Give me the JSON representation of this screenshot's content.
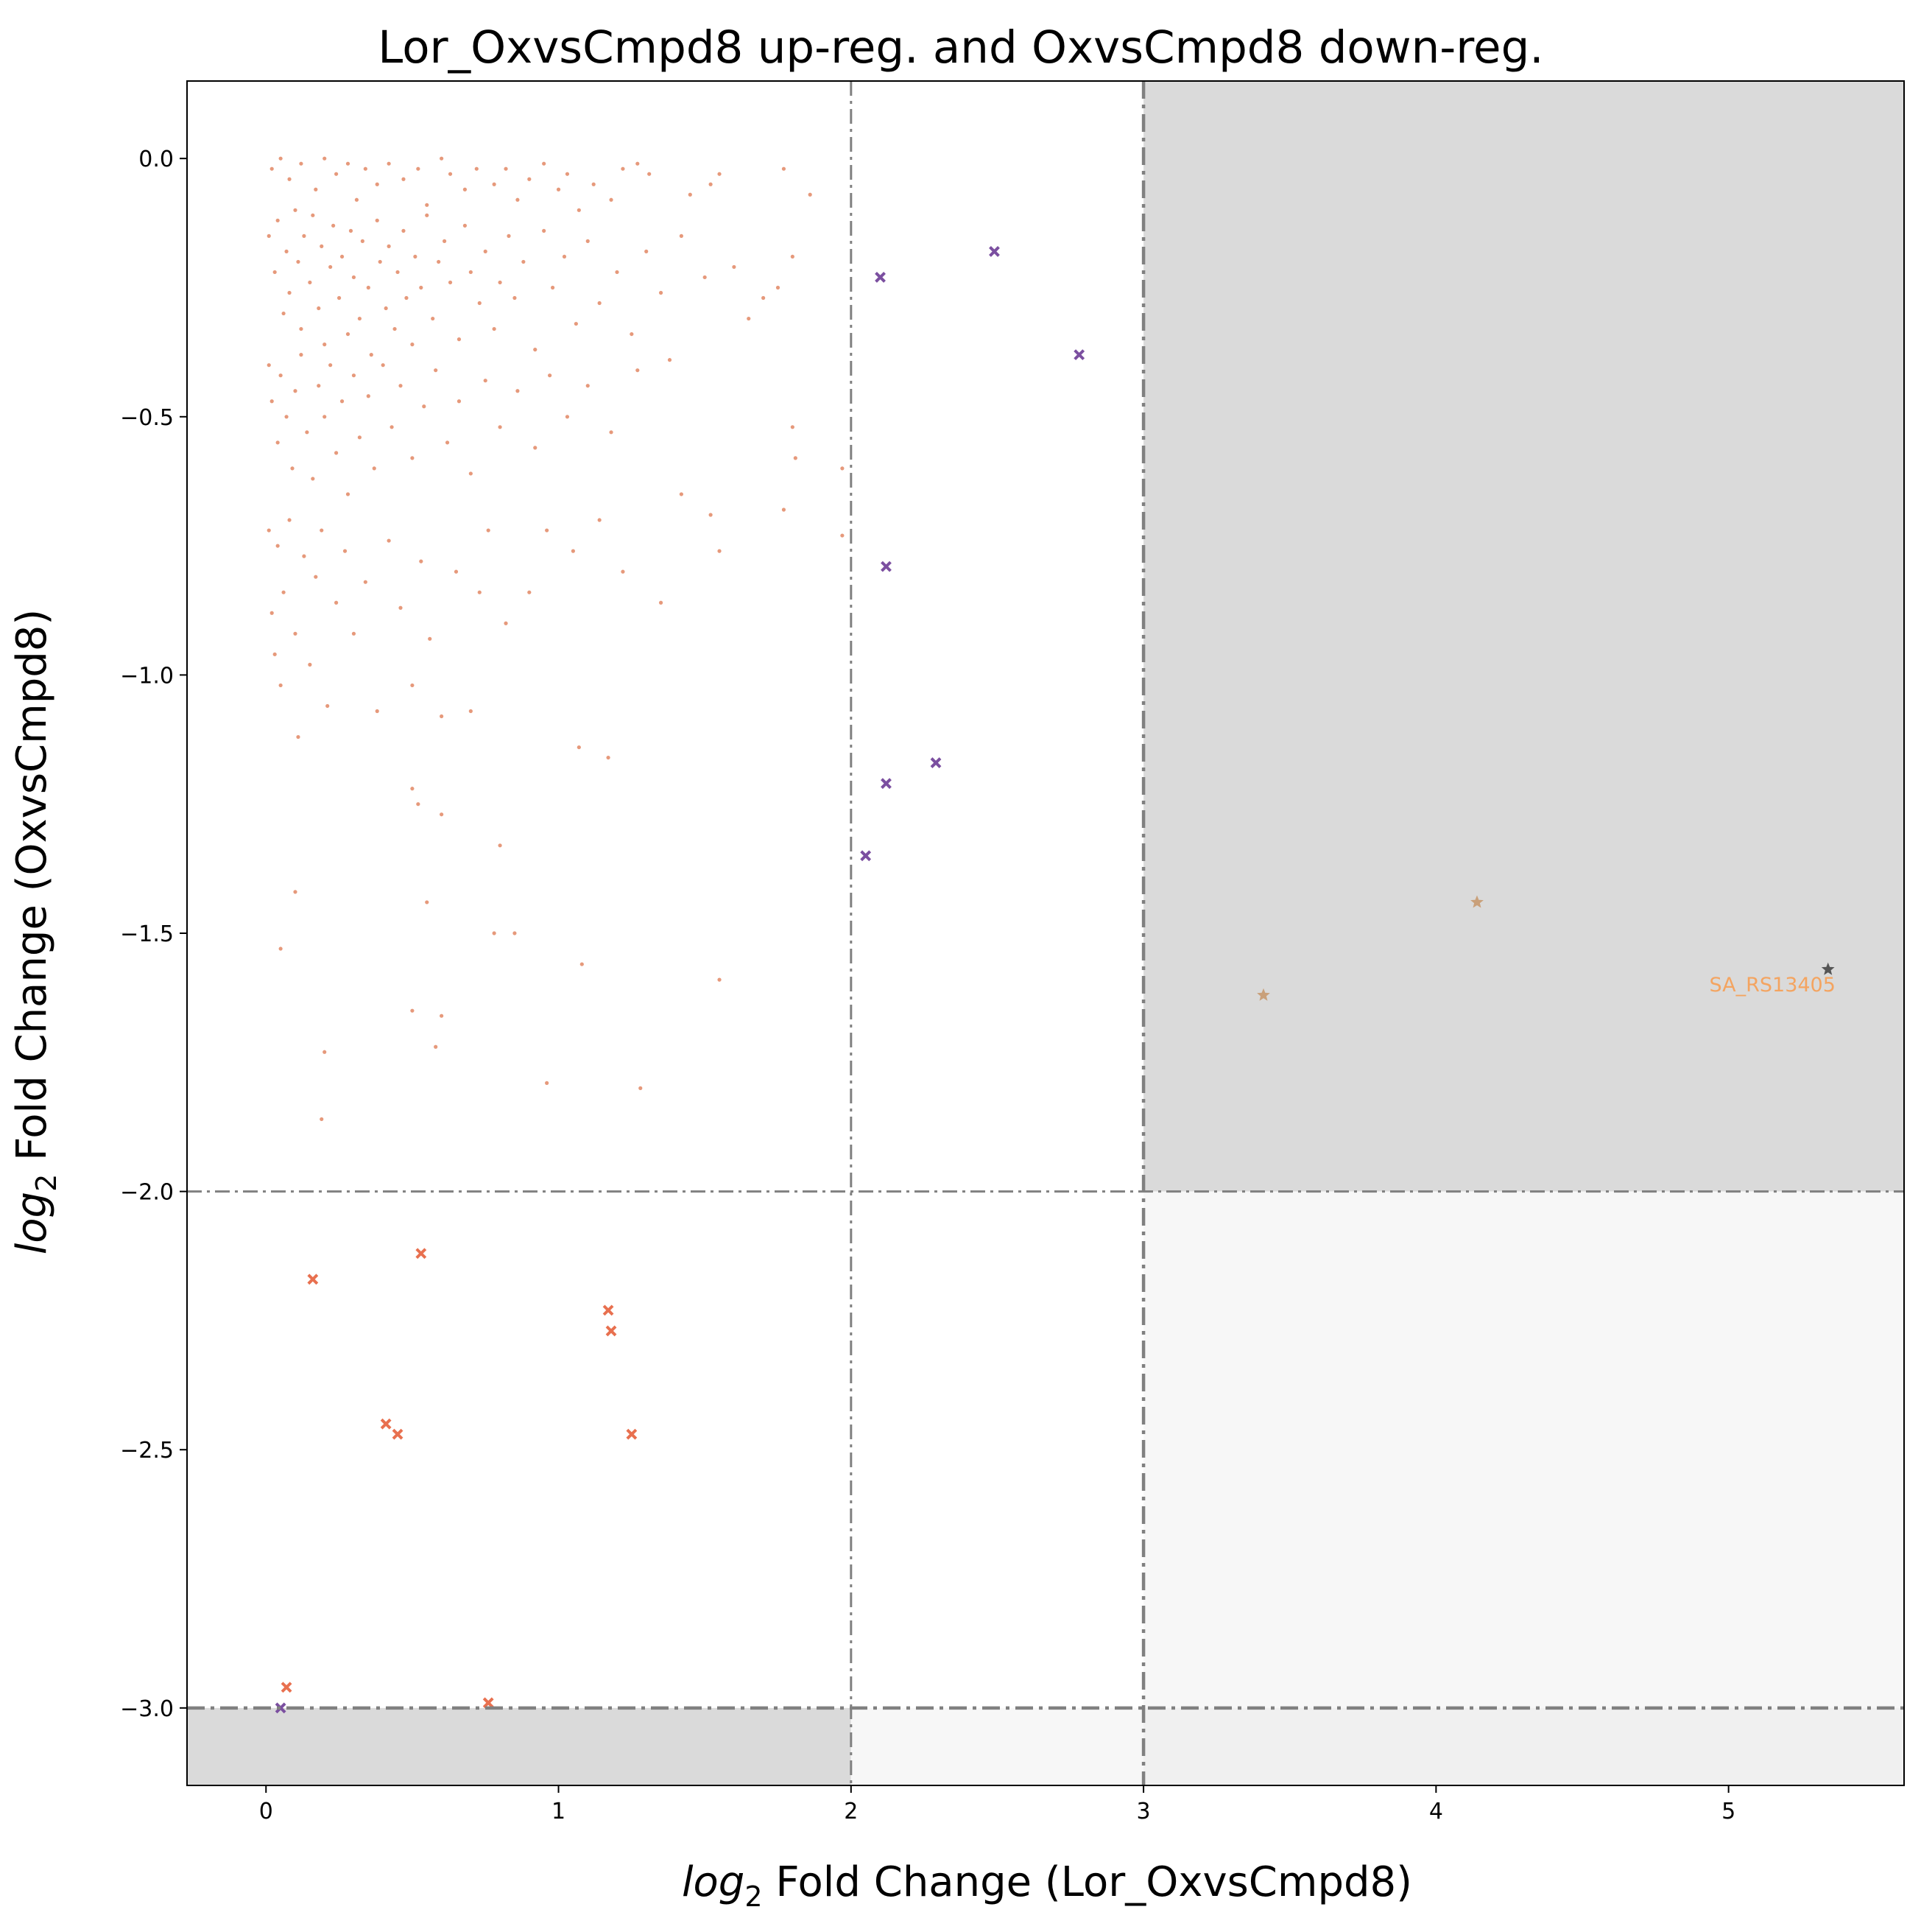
{
  "chart_data": {
    "type": "scatter",
    "title": "Lor_OxvsCmpd8 up-reg. and OxvsCmpd8 down-reg.",
    "xlabel": {
      "prefix": "log",
      "sub": "2",
      "rest": " Fold Change (Lor_OxvsCmpd8)"
    },
    "ylabel": {
      "prefix": "log",
      "sub": "2",
      "rest": " Fold Change (OxvsCmpd8)"
    },
    "xlim": [
      -0.27,
      5.6
    ],
    "ylim": [
      -3.15,
      0.15
    ],
    "xticks": [
      {
        "value": 0,
        "label": "0"
      },
      {
        "value": 1,
        "label": "1"
      },
      {
        "value": 2,
        "label": "2"
      },
      {
        "value": 3,
        "label": "3"
      },
      {
        "value": 4,
        "label": "4"
      },
      {
        "value": 5,
        "label": "5"
      }
    ],
    "yticks": [
      {
        "value": 0,
        "label": "0.0"
      },
      {
        "value": -0.5,
        "label": "−0.5"
      },
      {
        "value": -1,
        "label": "−1.0"
      },
      {
        "value": -1.5,
        "label": "−1.5"
      },
      {
        "value": -2,
        "label": "−2.0"
      },
      {
        "value": -2.5,
        "label": "−2.5"
      },
      {
        "value": -3,
        "label": "−3.0"
      }
    ],
    "regions": [
      {
        "x": [
          3,
          5.6
        ],
        "y": [
          -2,
          0.15
        ],
        "color": "#dadada"
      },
      {
        "x": [
          3,
          5.6
        ],
        "y": [
          -3.15,
          -2
        ],
        "color": "#f7f7f7"
      },
      {
        "x": [
          -0.27,
          2
        ],
        "y": [
          -3.15,
          -3
        ],
        "color": "#dadada"
      },
      {
        "x": [
          2,
          3
        ],
        "y": [
          -3.15,
          -3
        ],
        "color": "#f7f7f7"
      },
      {
        "x": [
          3,
          5.6
        ],
        "y": [
          -3.15,
          -3
        ],
        "color": "#f0f0f0"
      }
    ],
    "reference_lines": [
      {
        "axis": "x",
        "value": 2,
        "weight": "thin"
      },
      {
        "axis": "x",
        "value": 3,
        "weight": "thick"
      },
      {
        "axis": "y",
        "value": -2,
        "weight": "thin"
      },
      {
        "axis": "y",
        "value": -3,
        "weight": "thick"
      }
    ],
    "line_color": "#808080",
    "series": [
      {
        "marker": "dot",
        "color": "#e0805a",
        "points": [
          [
            0.02,
            -0.02
          ],
          [
            0.05,
            0
          ],
          [
            0.08,
            -0.04
          ],
          [
            0.12,
            -0.01
          ],
          [
            0.17,
            -0.06
          ],
          [
            0.2,
            0
          ],
          [
            0.24,
            -0.03
          ],
          [
            0.28,
            -0.01
          ],
          [
            0.31,
            -0.08
          ],
          [
            0.34,
            -0.02
          ],
          [
            0.38,
            -0.05
          ],
          [
            0.42,
            -0.01
          ],
          [
            0.47,
            -0.04
          ],
          [
            0.52,
            -0.02
          ],
          [
            0.55,
            -0.09
          ],
          [
            0.6,
            0
          ],
          [
            0.63,
            -0.03
          ],
          [
            0.68,
            -0.06
          ],
          [
            0.72,
            -0.02
          ],
          [
            0.78,
            -0.05
          ],
          [
            0.82,
            -0.02
          ],
          [
            0.86,
            -0.08
          ],
          [
            0.9,
            -0.04
          ],
          [
            0.95,
            -0.01
          ],
          [
            1,
            -0.06
          ],
          [
            1.03,
            -0.03
          ],
          [
            1.07,
            -0.1
          ],
          [
            1.12,
            -0.05
          ],
          [
            1.18,
            -0.08
          ],
          [
            1.22,
            -0.02
          ],
          [
            1.27,
            -0.01
          ],
          [
            1.31,
            -0.03
          ],
          [
            1.45,
            -0.07
          ],
          [
            1.52,
            -0.05
          ],
          [
            1.55,
            -0.03
          ],
          [
            1.77,
            -0.02
          ],
          [
            1.86,
            -0.07
          ],
          [
            0.01,
            -0.15
          ],
          [
            0.03,
            -0.22
          ],
          [
            0.04,
            -0.12
          ],
          [
            0.06,
            -0.3
          ],
          [
            0.07,
            -0.18
          ],
          [
            0.08,
            -0.26
          ],
          [
            0.1,
            -0.1
          ],
          [
            0.11,
            -0.2
          ],
          [
            0.12,
            -0.33
          ],
          [
            0.13,
            -0.15
          ],
          [
            0.15,
            -0.24
          ],
          [
            0.16,
            -0.11
          ],
          [
            0.18,
            -0.29
          ],
          [
            0.19,
            -0.17
          ],
          [
            0.2,
            -0.36
          ],
          [
            0.22,
            -0.21
          ],
          [
            0.23,
            -0.13
          ],
          [
            0.25,
            -0.27
          ],
          [
            0.26,
            -0.19
          ],
          [
            0.28,
            -0.34
          ],
          [
            0.29,
            -0.14
          ],
          [
            0.3,
            -0.23
          ],
          [
            0.32,
            -0.31
          ],
          [
            0.33,
            -0.16
          ],
          [
            0.35,
            -0.25
          ],
          [
            0.36,
            -0.38
          ],
          [
            0.38,
            -0.12
          ],
          [
            0.39,
            -0.2
          ],
          [
            0.41,
            -0.29
          ],
          [
            0.42,
            -0.17
          ],
          [
            0.44,
            -0.33
          ],
          [
            0.45,
            -0.22
          ],
          [
            0.47,
            -0.14
          ],
          [
            0.48,
            -0.27
          ],
          [
            0.5,
            -0.36
          ],
          [
            0.51,
            -0.19
          ],
          [
            0.53,
            -0.25
          ],
          [
            0.55,
            -0.11
          ],
          [
            0.57,
            -0.31
          ],
          [
            0.59,
            -0.2
          ],
          [
            0.61,
            -0.16
          ],
          [
            0.63,
            -0.24
          ],
          [
            0.66,
            -0.35
          ],
          [
            0.68,
            -0.13
          ],
          [
            0.7,
            -0.22
          ],
          [
            0.73,
            -0.28
          ],
          [
            0.75,
            -0.18
          ],
          [
            0.78,
            -0.33
          ],
          [
            0.8,
            -0.24
          ],
          [
            0.83,
            -0.15
          ],
          [
            0.85,
            -0.27
          ],
          [
            0.88,
            -0.2
          ],
          [
            0.92,
            -0.37
          ],
          [
            0.95,
            -0.14
          ],
          [
            0.98,
            -0.25
          ],
          [
            1.02,
            -0.19
          ],
          [
            1.06,
            -0.32
          ],
          [
            1.1,
            -0.16
          ],
          [
            1.14,
            -0.28
          ],
          [
            1.2,
            -0.22
          ],
          [
            1.25,
            -0.34
          ],
          [
            1.3,
            -0.18
          ],
          [
            1.35,
            -0.26
          ],
          [
            1.42,
            -0.15
          ],
          [
            1.5,
            -0.23
          ],
          [
            1.6,
            -0.21
          ],
          [
            1.7,
            -0.27
          ],
          [
            1.8,
            -0.19
          ],
          [
            1.65,
            -0.31
          ],
          [
            1.75,
            -0.25
          ],
          [
            0.01,
            -0.4
          ],
          [
            0.02,
            -0.47
          ],
          [
            0.04,
            -0.55
          ],
          [
            0.05,
            -0.42
          ],
          [
            0.07,
            -0.5
          ],
          [
            0.09,
            -0.6
          ],
          [
            0.1,
            -0.45
          ],
          [
            0.12,
            -0.38
          ],
          [
            0.14,
            -0.53
          ],
          [
            0.16,
            -0.62
          ],
          [
            0.18,
            -0.44
          ],
          [
            0.2,
            -0.5
          ],
          [
            0.22,
            -0.4
          ],
          [
            0.24,
            -0.57
          ],
          [
            0.26,
            -0.47
          ],
          [
            0.28,
            -0.65
          ],
          [
            0.3,
            -0.42
          ],
          [
            0.32,
            -0.54
          ],
          [
            0.35,
            -0.46
          ],
          [
            0.37,
            -0.6
          ],
          [
            0.4,
            -0.4
          ],
          [
            0.43,
            -0.52
          ],
          [
            0.46,
            -0.44
          ],
          [
            0.5,
            -0.58
          ],
          [
            0.54,
            -0.48
          ],
          [
            0.58,
            -0.41
          ],
          [
            0.62,
            -0.55
          ],
          [
            0.66,
            -0.47
          ],
          [
            0.7,
            -0.61
          ],
          [
            0.75,
            -0.43
          ],
          [
            0.8,
            -0.52
          ],
          [
            0.86,
            -0.45
          ],
          [
            0.92,
            -0.56
          ],
          [
            0.97,
            -0.42
          ],
          [
            1.03,
            -0.5
          ],
          [
            1.1,
            -0.44
          ],
          [
            1.18,
            -0.53
          ],
          [
            1.27,
            -0.41
          ],
          [
            1.38,
            -0.39
          ],
          [
            1.8,
            -0.52
          ],
          [
            1.81,
            -0.58
          ],
          [
            1.97,
            -0.6
          ],
          [
            0.01,
            -0.72
          ],
          [
            0.02,
            -0.88
          ],
          [
            0.03,
            -0.96
          ],
          [
            0.04,
            -0.75
          ],
          [
            0.05,
            -1.02
          ],
          [
            0.06,
            -0.84
          ],
          [
            0.08,
            -0.7
          ],
          [
            0.1,
            -0.92
          ],
          [
            0.11,
            -1.12
          ],
          [
            0.13,
            -0.77
          ],
          [
            0.15,
            -0.98
          ],
          [
            0.17,
            -0.81
          ],
          [
            0.19,
            -0.72
          ],
          [
            0.21,
            -1.06
          ],
          [
            0.24,
            -0.86
          ],
          [
            0.27,
            -0.76
          ],
          [
            0.3,
            -0.92
          ],
          [
            0.34,
            -0.82
          ],
          [
            0.38,
            -1.07
          ],
          [
            0.42,
            -0.74
          ],
          [
            0.46,
            -0.87
          ],
          [
            0.5,
            -1.02
          ],
          [
            0.53,
            -0.78
          ],
          [
            0.56,
            -0.93
          ],
          [
            0.6,
            -1.08
          ],
          [
            0.65,
            -0.8
          ],
          [
            0.7,
            -1.07
          ],
          [
            0.76,
            -0.72
          ],
          [
            0.82,
            -0.9
          ],
          [
            0.9,
            -0.84
          ],
          [
            0.96,
            -0.72
          ],
          [
            1.05,
            -0.76
          ],
          [
            1.14,
            -0.7
          ],
          [
            1.22,
            -0.8
          ],
          [
            1.35,
            -0.86
          ],
          [
            1.42,
            -0.65
          ],
          [
            1.52,
            -0.69
          ],
          [
            1.55,
            -0.76
          ],
          [
            1.77,
            -0.68
          ],
          [
            1.97,
            -0.73
          ],
          [
            0.05,
            -1.53
          ],
          [
            0.1,
            -1.42
          ],
          [
            0.2,
            -1.73
          ],
          [
            0.19,
            -1.86
          ],
          [
            0.5,
            -1.22
          ],
          [
            0.52,
            -1.25
          ],
          [
            0.55,
            -1.44
          ],
          [
            0.6,
            -1.27
          ],
          [
            0.5,
            -1.65
          ],
          [
            0.58,
            -1.72
          ],
          [
            0.6,
            -1.66
          ],
          [
            0.73,
            -0.84
          ],
          [
            0.8,
            -1.33
          ],
          [
            0.78,
            -1.5
          ],
          [
            0.85,
            -1.5
          ],
          [
            0.96,
            -1.79
          ],
          [
            1.07,
            -1.14
          ],
          [
            1.08,
            -1.56
          ],
          [
            1.17,
            -1.16
          ],
          [
            1.28,
            -1.8
          ],
          [
            1.55,
            -1.59
          ]
        ]
      },
      {
        "marker": "x",
        "color": "#7b4fa0",
        "points": [
          [
            2.1,
            -0.23
          ],
          [
            2.49,
            -0.18
          ],
          [
            2.78,
            -0.38
          ],
          [
            2.12,
            -0.79
          ],
          [
            2.29,
            -1.17
          ],
          [
            2.12,
            -1.21
          ],
          [
            2.05,
            -1.35
          ],
          [
            0.05,
            -3
          ]
        ]
      },
      {
        "marker": "x",
        "color": "#e8704f",
        "points": [
          [
            0.16,
            -2.17
          ],
          [
            0.53,
            -2.12
          ],
          [
            1.17,
            -2.23
          ],
          [
            1.18,
            -2.27
          ],
          [
            0.41,
            -2.45
          ],
          [
            0.45,
            -2.47
          ],
          [
            1.25,
            -2.47
          ],
          [
            0.07,
            -2.96
          ],
          [
            0.76,
            -2.99
          ]
        ]
      },
      {
        "marker": "star",
        "color": "#c9a07a",
        "points": [
          [
            3.41,
            -1.62
          ],
          [
            4.14,
            -1.44
          ]
        ]
      },
      {
        "marker": "star",
        "color": "#555555",
        "points": [
          [
            5.34,
            -1.57
          ]
        ]
      }
    ],
    "annotations": [
      {
        "text": "SA_RS13405",
        "x": 5.15,
        "y": -1.6,
        "color": "#f4a460"
      }
    ],
    "grid": false,
    "legend": "none"
  }
}
